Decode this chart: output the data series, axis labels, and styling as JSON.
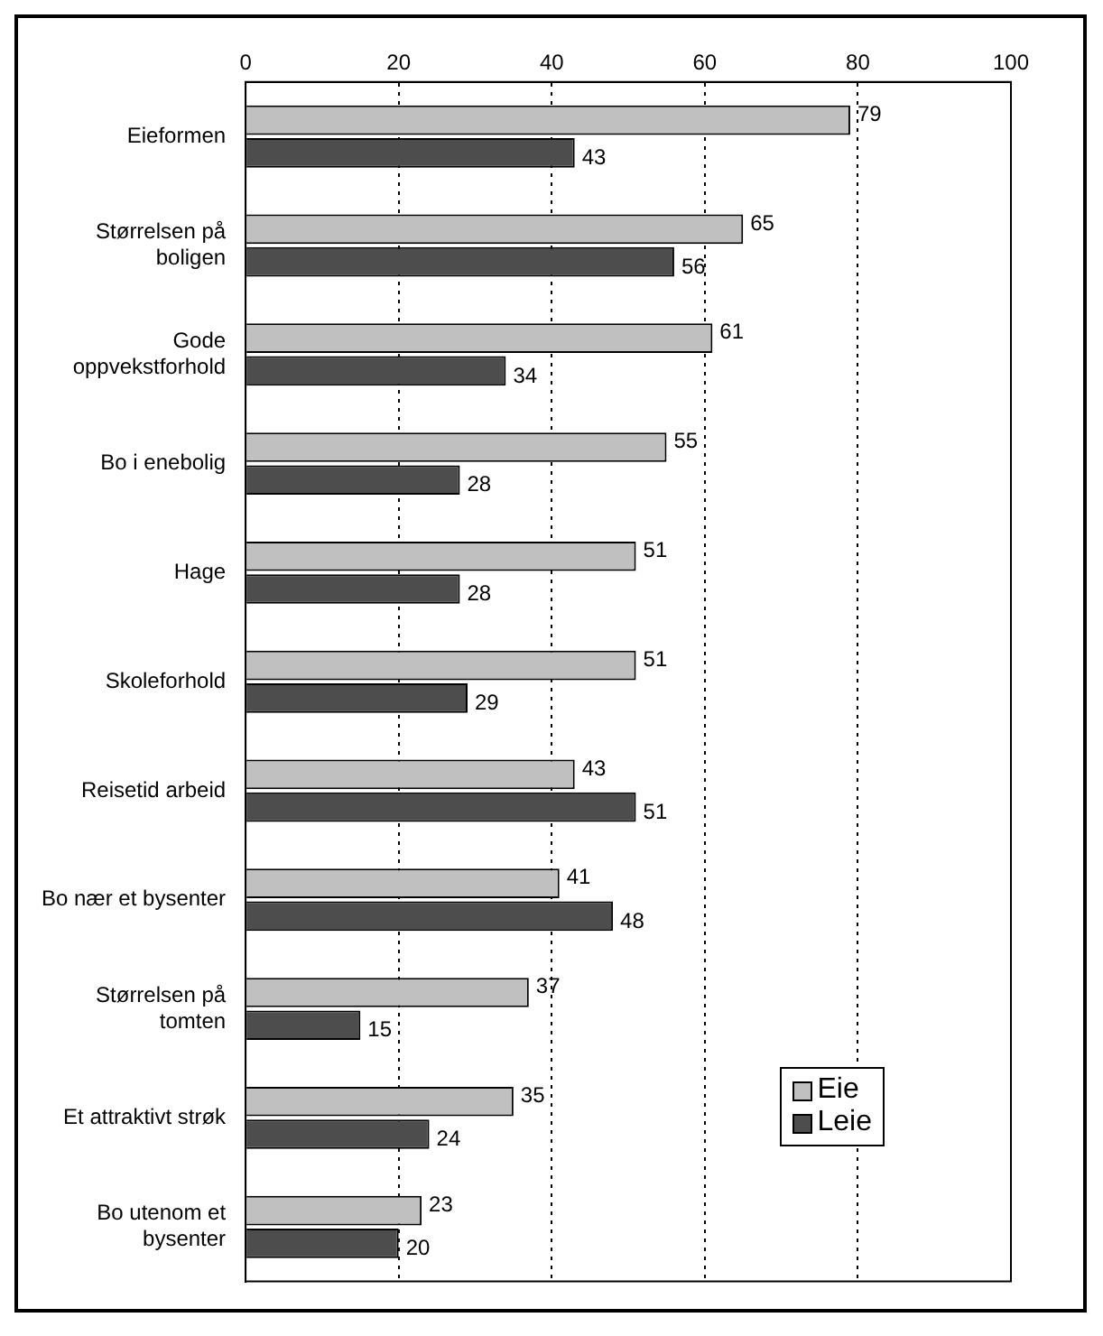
{
  "chart_data": {
    "type": "bar",
    "orientation": "horizontal",
    "categories": [
      "Eieformen",
      "Størrelsen på boligen",
      "Gode oppvekstforhold",
      "Bo i enebolig",
      "Hage",
      "Skoleforhold",
      "Reisetid arbeid",
      "Bo nær et bysenter",
      "Størrelsen på tomten",
      "Et attraktivt strøk",
      "Bo utenom et bysenter"
    ],
    "series": [
      {
        "name": "Eie",
        "color": "#c0c0c0",
        "values": [
          79,
          65,
          61,
          55,
          51,
          51,
          43,
          41,
          37,
          35,
          23
        ]
      },
      {
        "name": "Leie",
        "color": "#4d4d4d",
        "values": [
          43,
          56,
          34,
          28,
          28,
          29,
          51,
          48,
          15,
          24,
          20
        ]
      }
    ],
    "xlim": [
      0,
      100
    ],
    "xticks": [
      0,
      20,
      40,
      60,
      80,
      100
    ],
    "grid": "x",
    "legend": "bottom right",
    "data_labels": true
  }
}
